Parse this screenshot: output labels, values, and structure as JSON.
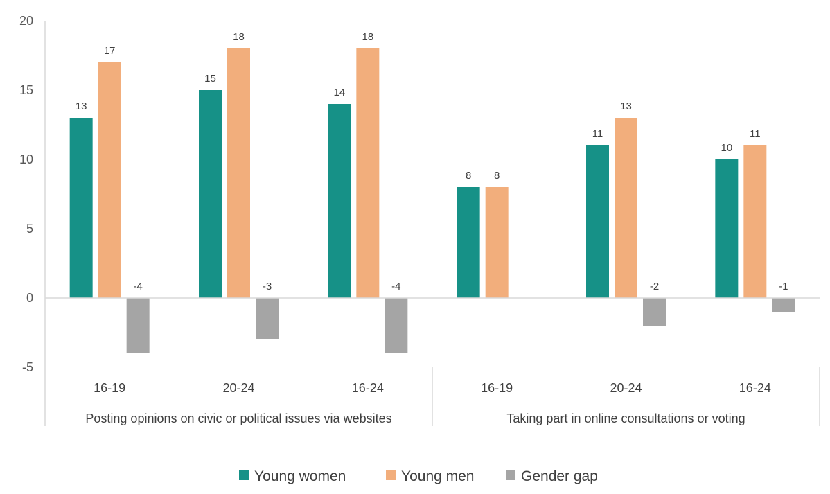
{
  "colors": {
    "young_women": "#169187",
    "young_men": "#f2ae7c",
    "gender_gap": "#a5a5a5",
    "axis": "#d9d9d9"
  },
  "chart_data": {
    "type": "bar",
    "categories": [
      "16-19",
      "20-24",
      "16-24",
      "16-19",
      "20-24",
      "16-24"
    ],
    "groups": [
      {
        "label": "Posting opinions on civic or political issues via websites",
        "categories": [
          "16-19",
          "20-24",
          "16-24"
        ]
      },
      {
        "label": "Taking part in online consultations or voting",
        "categories": [
          "16-19",
          "20-24",
          "16-24"
        ]
      }
    ],
    "series": [
      {
        "name": "Young women",
        "values": [
          13,
          15,
          14,
          8,
          11,
          10
        ],
        "labels": [
          "13",
          "15",
          "14",
          "8",
          "11",
          "10"
        ]
      },
      {
        "name": "Young men",
        "values": [
          17,
          18,
          18,
          8,
          13,
          11
        ],
        "labels": [
          "17",
          "18",
          "18",
          "8",
          "13",
          "11"
        ]
      },
      {
        "name": "Gender gap",
        "values": [
          -4,
          -3,
          -4,
          0,
          -2,
          -1
        ],
        "labels": [
          "-4",
          "-3",
          "-4",
          "",
          "-2",
          "-1"
        ]
      }
    ],
    "y_ticks": [
      "20",
      "15",
      "10",
      "5",
      "0",
      "-5"
    ],
    "ylim": [
      -5,
      20
    ],
    "legend_position": "bottom",
    "grid": false
  }
}
